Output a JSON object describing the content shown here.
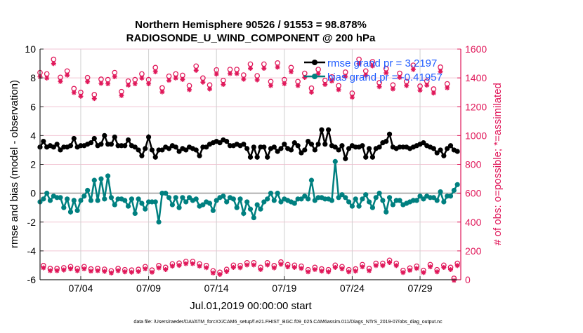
{
  "chart_data": {
    "type": "line",
    "title": [
      "Northern Hemisphere 90526 / 91553 = 98.878%",
      "RADIOSONDE_U_WIND_COMPONENT @ 200 hPa"
    ],
    "xlabel": "Jul.01,2019 00:00:00 start",
    "ylabel": "rmse and bias (model - observation)",
    "ylabel_right": "# of obs: o=possible; *=assimilated",
    "footer": "data file: /Users/raeder/DAI/ATM_forcXX/CAM6_setup/f.e21.FHIST_BGC.f09_025.CAM6assim.011/Diags_NTrS_2019-07/obs_diag_output.nc",
    "xlim_days": [
      1,
      32
    ],
    "x_ticks": [
      {
        "day": 4,
        "label": "07/04"
      },
      {
        "day": 9,
        "label": "07/09"
      },
      {
        "day": 14,
        "label": "07/14"
      },
      {
        "day": 19,
        "label": "07/19"
      },
      {
        "day": 24,
        "label": "07/24"
      },
      {
        "day": 29,
        "label": "07/29"
      }
    ],
    "ylim": [
      -6,
      10
    ],
    "y_ticks": [
      "-6",
      "-4",
      "-2",
      "0",
      "2",
      "4",
      "6",
      "8",
      "10"
    ],
    "ylim_right": [
      0,
      1600
    ],
    "y_ticks_right": [
      "0",
      "200",
      "400",
      "600",
      "800",
      "1000",
      "1200",
      "1400",
      "1600"
    ],
    "legend_placement": "top-right",
    "colors": {
      "rmse": "#000000",
      "bias": "#008080",
      "obs": "#e0185a",
      "legend_text": "#1f5cff",
      "grid": "#f2c6d4",
      "vgrid": "#d0d0d0"
    },
    "time_step_days": 0.25,
    "series": [
      {
        "name": "rmse",
        "legend": "rmse grand pr = 3.2197",
        "values": [
          3.2,
          3.6,
          3.2,
          3.3,
          3.2,
          3.4,
          3.0,
          3.2,
          3.2,
          3.3,
          3.8,
          3.2,
          3.3,
          3.3,
          3.4,
          3.5,
          3.8,
          3.3,
          3.4,
          4.0,
          3.4,
          3.4,
          3.9,
          3.3,
          3.3,
          3.3,
          3.7,
          3.3,
          3.2,
          3.0,
          2.6,
          3.1,
          3.9,
          3.0,
          2.5,
          3.0,
          3.0,
          3.2,
          3.1,
          3.3,
          3.2,
          2.9,
          3.1,
          3.0,
          3.2,
          3.1,
          3.0,
          2.6,
          3.2,
          3.2,
          3.4,
          3.5,
          3.6,
          3.5,
          3.7,
          3.6,
          3.3,
          3.3,
          3.4,
          3.3,
          3.4,
          3.1,
          2.5,
          3.2,
          2.5,
          3.2,
          3.2,
          2.5,
          3.1,
          3.2,
          2.9,
          3.1,
          3.4,
          3.1,
          3.0,
          3.5,
          3.3,
          2.8,
          3.0,
          3.6,
          3.4,
          3.0,
          3.4,
          4.4,
          3.4,
          4.4,
          3.3,
          3.2,
          3.0,
          3.3,
          2.4,
          3.1,
          3.3,
          3.2,
          3.2,
          3.3,
          2.5,
          3.1,
          2.5,
          3.1,
          3.2,
          3.5,
          3.6,
          4.1,
          3.2,
          3.1,
          3.2,
          3.2,
          3.2,
          3.1,
          3.2,
          3.3,
          3.4,
          3.5,
          3.3,
          3.2,
          3.1,
          2.8,
          3.0,
          2.6,
          3.1,
          3.3,
          3.0,
          2.9
        ]
      },
      {
        "name": "bias",
        "legend": "bias grand pr = -0.41957",
        "values": [
          -0.6,
          -0.4,
          0.0,
          -0.5,
          -0.2,
          -0.3,
          -0.3,
          -1.0,
          -0.4,
          -1.3,
          -0.5,
          -1.2,
          -0.5,
          -0.2,
          0.2,
          -0.5,
          0.9,
          -0.5,
          1.0,
          -0.4,
          1.2,
          -0.3,
          -0.8,
          -0.4,
          -0.4,
          -0.5,
          -0.9,
          -0.4,
          -1.4,
          -0.4,
          -0.7,
          -1.1,
          -0.6,
          -0.6,
          -0.6,
          -2.0,
          0.0,
          0.0,
          -0.3,
          -0.8,
          -0.3,
          -1.0,
          -0.3,
          -0.6,
          -0.3,
          -0.5,
          -0.4,
          -0.9,
          -0.8,
          -0.6,
          -0.7,
          -1.2,
          -0.5,
          -0.3,
          -0.2,
          -0.6,
          -0.3,
          -0.4,
          -1.0,
          -0.4,
          -1.4,
          -0.6,
          -1.1,
          -1.7,
          -0.8,
          -1.1,
          -0.6,
          -0.4,
          0.0,
          -0.5,
          0.0,
          -0.6,
          -0.4,
          -0.5,
          -0.6,
          -0.7,
          -0.4,
          -0.4,
          -0.2,
          -0.4,
          0.9,
          -0.5,
          -0.3,
          -0.3,
          -0.4,
          -0.4,
          -0.5,
          2.2,
          -0.3,
          -0.1,
          -0.3,
          -0.6,
          -0.9,
          -0.4,
          -0.9,
          -0.4,
          -0.1,
          -0.6,
          -1.0,
          -0.3,
          0.0,
          -0.5,
          -1.3,
          -0.3,
          -0.8,
          -0.5,
          -0.5,
          -0.8,
          -0.7,
          -0.6,
          -0.5,
          -0.5,
          -0.2,
          -0.4,
          -0.2,
          -0.3,
          -0.3,
          -0.5,
          0.1,
          -0.6,
          -0.2,
          -0.2,
          0.2,
          0.6
        ]
      },
      {
        "name": "obs_00Z_12Z_possible",
        "start_day": 1.0,
        "step_days": 0.5,
        "values": [
          1427,
          1418,
          1519,
          1394,
          1438,
          1316,
          1290,
          1392,
          1274,
          1381,
          1378,
          1427,
          1295,
          1368,
          1378,
          1418,
          1378,
          1462,
          1321,
          1402,
          1418,
          1408,
          1336,
          1472,
          1389,
          1341,
          1446,
          1373,
          1449,
          1449,
          1410,
          1486,
          1405,
          1486,
          1365,
          1494,
          1378,
          1462,
          1365,
          1422,
          1319,
          1449,
          1373,
          1397,
          1336,
          1430,
          1284,
          1519,
          1438,
          1503,
          1357,
          1454,
          1341,
          1422,
          1365,
          1478,
          1333,
          1368,
          1313,
          1465,
          1349,
          0
        ]
      },
      {
        "name": "obs_06Z_18Z_possible",
        "start_day": 1.25,
        "step_days": 0.5,
        "values": [
          88,
          68,
          68,
          73,
          81,
          68,
          81,
          65,
          68,
          63,
          52,
          68,
          60,
          57,
          62,
          81,
          57,
          88,
          76,
          100,
          105,
          117,
          117,
          100,
          89,
          52,
          42,
          62,
          91,
          89,
          108,
          108,
          76,
          108,
          88,
          113,
          95,
          91,
          84,
          60,
          76,
          65,
          60,
          91,
          81,
          60,
          65,
          95,
          68,
          104,
          104,
          125,
          104,
          55,
          71,
          84,
          55,
          95,
          60,
          91,
          76,
          104
        ]
      }
    ]
  }
}
